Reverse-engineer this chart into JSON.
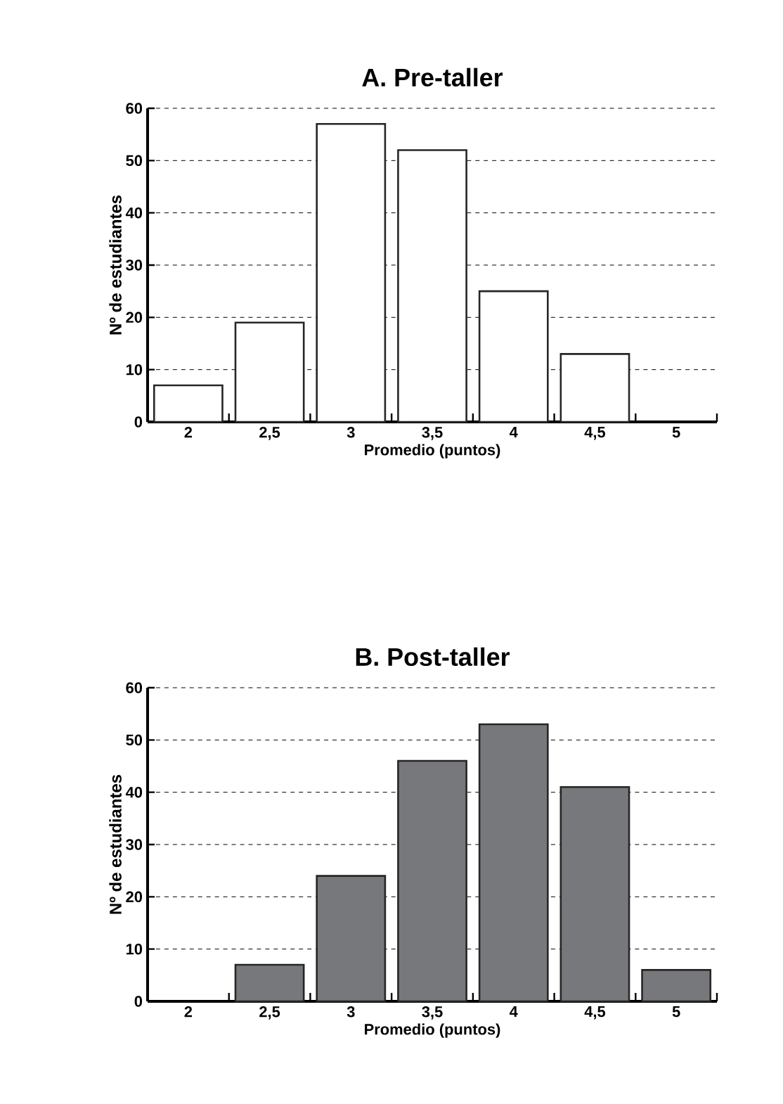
{
  "chart_data": [
    {
      "type": "bar",
      "title": "A. Pre-taller",
      "xlabel": "Promedio (puntos)",
      "ylabel": "Nº de estudiantes",
      "categories": [
        "2",
        "2,5",
        "3",
        "3,5",
        "4",
        "4,5",
        "5"
      ],
      "values": [
        7,
        19,
        57,
        52,
        25,
        13,
        0
      ],
      "color": "#ffffff",
      "ylim": [
        0,
        60
      ],
      "yticks": [
        0,
        10,
        20,
        30,
        40,
        50,
        60
      ],
      "grid": "y"
    },
    {
      "type": "bar",
      "title": "B. Post-taller",
      "xlabel": "Promedio (puntos)",
      "ylabel": "Nº de estudiantes",
      "categories": [
        "2",
        "2,5",
        "3",
        "3,5",
        "4",
        "4,5",
        "5"
      ],
      "values": [
        0,
        7,
        24,
        46,
        53,
        41,
        6
      ],
      "color": "#77787b",
      "ylim": [
        0,
        60
      ],
      "yticks": [
        0,
        10,
        20,
        30,
        40,
        50,
        60
      ],
      "grid": "y"
    }
  ]
}
